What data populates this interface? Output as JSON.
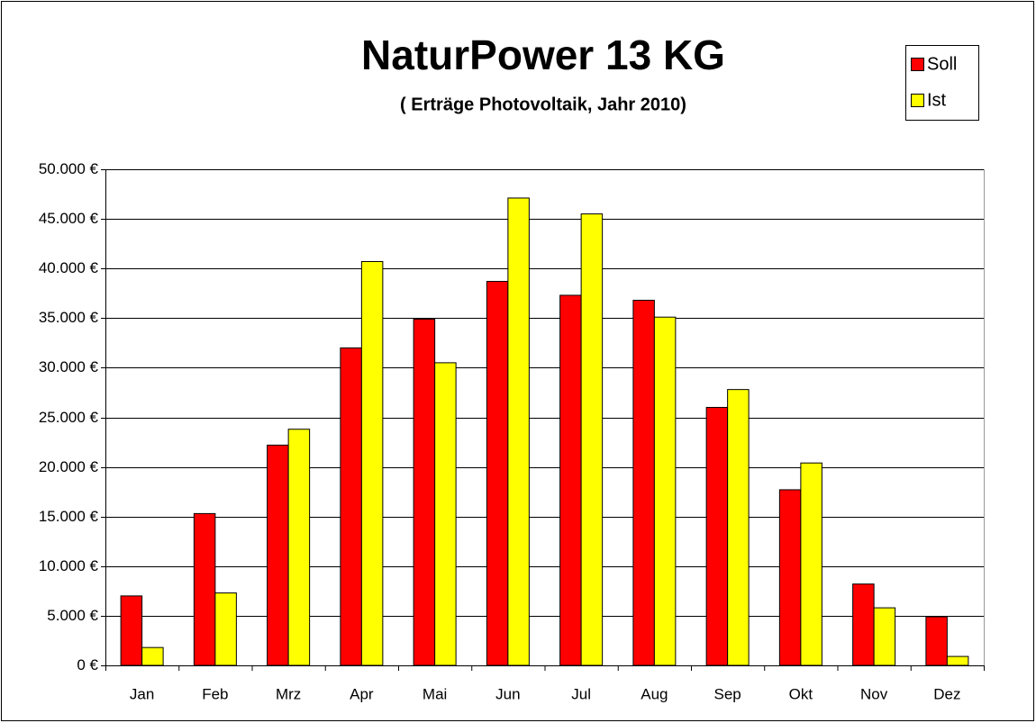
{
  "chart_data": {
    "type": "bar",
    "title": "NaturPower 13 KG",
    "subtitle": "( Erträge Photovoltaik, Jahr 2010)",
    "categories": [
      "Jan",
      "Feb",
      "Mrz",
      "Apr",
      "Mai",
      "Jun",
      "Jul",
      "Aug",
      "Sep",
      "Okt",
      "Nov",
      "Dez"
    ],
    "series": [
      {
        "name": "Soll",
        "color": "#ff0000",
        "values": [
          7000,
          15300,
          22200,
          32000,
          34900,
          38700,
          37300,
          36800,
          26000,
          17700,
          8200,
          4900
        ]
      },
      {
        "name": "Ist",
        "color": "#ffff00",
        "values": [
          1800,
          7300,
          23800,
          40700,
          30500,
          47100,
          45500,
          35100,
          27800,
          20400,
          5800,
          900
        ]
      }
    ],
    "ylim": [
      0,
      50000
    ],
    "yticks": [
      {
        "value": 0,
        "label": "0 €"
      },
      {
        "value": 5000,
        "label": "5.000 €"
      },
      {
        "value": 10000,
        "label": "10.000 €"
      },
      {
        "value": 15000,
        "label": "15.000 €"
      },
      {
        "value": 20000,
        "label": "20.000 €"
      },
      {
        "value": 25000,
        "label": "25.000 €"
      },
      {
        "value": 30000,
        "label": "30.000 €"
      },
      {
        "value": 35000,
        "label": "35.000 €"
      },
      {
        "value": 40000,
        "label": "40.000 €"
      },
      {
        "value": 45000,
        "label": "45.000 €"
      },
      {
        "value": 50000,
        "label": "50.000 €"
      }
    ],
    "grid": true,
    "legend": "top-right"
  }
}
